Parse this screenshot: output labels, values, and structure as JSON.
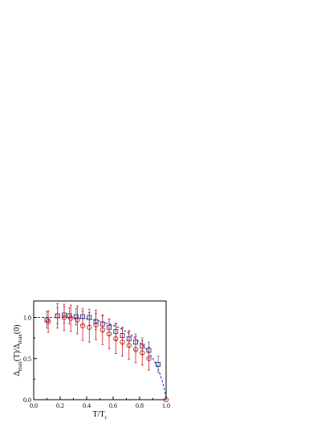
{
  "chart_data": {
    "type": "scatter",
    "xlabel": "T/T",
    "xlabel_sub": "c",
    "ylabel_parts": [
      {
        "text": "Δ",
        "sub": "max"
      },
      {
        "text": "(T)/Δ",
        "sub": "max"
      },
      {
        "text": "(0)",
        "sub": ""
      }
    ],
    "xlim": [
      0.0,
      1.0
    ],
    "ylim": [
      0.0,
      1.2
    ],
    "x_ticks": [
      {
        "value": 0.0,
        "label": "0.0"
      },
      {
        "value": 0.2,
        "label": "0.2"
      },
      {
        "value": 0.4,
        "label": "0.4"
      },
      {
        "value": 0.6,
        "label": "0.6"
      },
      {
        "value": 0.8,
        "label": "0.8"
      },
      {
        "value": 1.0,
        "label": "1.0"
      }
    ],
    "y_ticks": [
      {
        "value": 0.0,
        "label": "0.0"
      },
      {
        "value": 0.5,
        "label": "0.5"
      },
      {
        "value": 1.0,
        "label": "1.0"
      }
    ],
    "grid": false,
    "legend": "none",
    "series": [
      {
        "marker": "square",
        "color": "#2e2e8c",
        "errorbar_color": "#6a6a7a",
        "points": [
          {
            "x": 0.1,
            "y": 0.97,
            "err": 0.1
          },
          {
            "x": 0.18,
            "y": 1.02,
            "err": 0.1
          },
          {
            "x": 0.23,
            "y": 1.03,
            "err": 0.1
          },
          {
            "x": 0.27,
            "y": 1.02,
            "err": 0.1
          },
          {
            "x": 0.32,
            "y": 1.01,
            "err": 0.1
          },
          {
            "x": 0.37,
            "y": 1.01,
            "err": 0.1
          },
          {
            "x": 0.42,
            "y": 1.0,
            "err": 0.1
          },
          {
            "x": 0.47,
            "y": 0.95,
            "err": 0.1
          },
          {
            "x": 0.52,
            "y": 0.92,
            "err": 0.1
          },
          {
            "x": 0.57,
            "y": 0.88,
            "err": 0.1
          },
          {
            "x": 0.62,
            "y": 0.83,
            "err": 0.1
          },
          {
            "x": 0.67,
            "y": 0.78,
            "err": 0.1
          },
          {
            "x": 0.72,
            "y": 0.74,
            "err": 0.1
          },
          {
            "x": 0.77,
            "y": 0.7,
            "err": 0.1
          },
          {
            "x": 0.82,
            "y": 0.65,
            "err": 0.1
          },
          {
            "x": 0.87,
            "y": 0.6,
            "err": 0.1
          },
          {
            "x": 0.94,
            "y": 0.43,
            "err": 0.1
          }
        ]
      },
      {
        "marker": "circle",
        "color": "#d02020",
        "errorbar_color": "#d02020",
        "points": [
          {
            "x": 0.11,
            "y": 0.95,
            "err": 0.13
          },
          {
            "x": 0.18,
            "y": 1.02,
            "err": 0.15
          },
          {
            "x": 0.23,
            "y": 1.0,
            "err": 0.16
          },
          {
            "x": 0.28,
            "y": 0.99,
            "err": 0.16
          },
          {
            "x": 0.33,
            "y": 0.97,
            "err": 0.17
          },
          {
            "x": 0.37,
            "y": 0.9,
            "err": 0.18
          },
          {
            "x": 0.42,
            "y": 0.88,
            "err": 0.18
          },
          {
            "x": 0.47,
            "y": 0.91,
            "err": 0.18
          },
          {
            "x": 0.52,
            "y": 0.85,
            "err": 0.18
          },
          {
            "x": 0.57,
            "y": 0.8,
            "err": 0.18
          },
          {
            "x": 0.62,
            "y": 0.74,
            "err": 0.18
          },
          {
            "x": 0.67,
            "y": 0.7,
            "err": 0.17
          },
          {
            "x": 0.72,
            "y": 0.66,
            "err": 0.17
          },
          {
            "x": 0.77,
            "y": 0.61,
            "err": 0.16
          },
          {
            "x": 0.82,
            "y": 0.57,
            "err": 0.15
          },
          {
            "x": 0.87,
            "y": 0.5,
            "err": 0.14
          },
          {
            "x": 1.0,
            "y": 0.0,
            "err": 0.0
          }
        ]
      }
    ],
    "fit_curve": {
      "style": "dashed",
      "color": "#2a3ad8",
      "points": [
        [
          0.0,
          1.0
        ],
        [
          0.1,
          1.0
        ],
        [
          0.2,
          1.0
        ],
        [
          0.3,
          0.998
        ],
        [
          0.4,
          0.985
        ],
        [
          0.5,
          0.955
        ],
        [
          0.6,
          0.905
        ],
        [
          0.65,
          0.87
        ],
        [
          0.7,
          0.825
        ],
        [
          0.75,
          0.77
        ],
        [
          0.8,
          0.7
        ],
        [
          0.85,
          0.615
        ],
        [
          0.9,
          0.5
        ],
        [
          0.93,
          0.41
        ],
        [
          0.95,
          0.33
        ],
        [
          0.97,
          0.235
        ],
        [
          0.98,
          0.175
        ],
        [
          0.99,
          0.105
        ],
        [
          0.995,
          0.06
        ],
        [
          1.0,
          0.0
        ]
      ]
    }
  }
}
